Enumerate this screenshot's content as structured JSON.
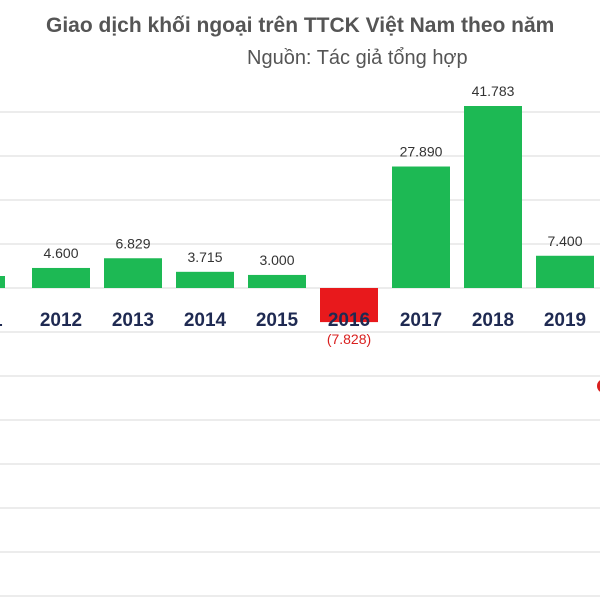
{
  "chart_data": {
    "type": "bar",
    "title": "Giao dịch khối ngoại trên TTCK Việt Nam theo năm",
    "subtitle": "Nguồn: Tác giả tổng hợp",
    "categories": [
      "2012",
      "2013",
      "2014",
      "2015",
      "2016",
      "2017",
      "2018",
      "2019"
    ],
    "values": [
      4600,
      6829,
      3715,
      3000,
      -7828,
      27890,
      41783,
      7400
    ],
    "data_labels": [
      "4.600",
      "6.829",
      "3.715",
      "3.000",
      "(7.828)",
      "27.890",
      "41.783",
      "7.400"
    ],
    "positive_color": "#1db954",
    "negative_color": "#e8191c",
    "label_color": "#333333",
    "negative_label_color": "#d9201f",
    "category_label_color": "#1f2a52",
    "gridlines": true,
    "grid_color": "#d9d9d9"
  }
}
